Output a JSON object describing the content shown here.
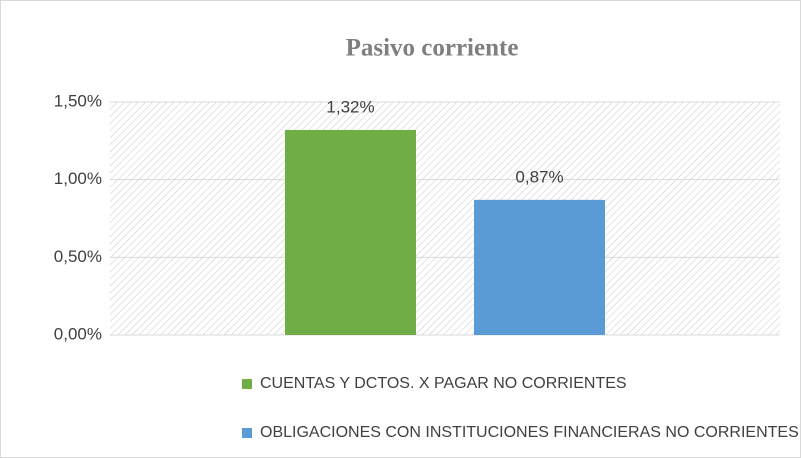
{
  "chart_data": {
    "type": "bar",
    "title": "Pasivo corriente",
    "categories": [
      null
    ],
    "series": [
      {
        "name": "CUENTAS Y DCTOS. X PAGAR NO CORRIENTES",
        "color": "#70ad47",
        "values": [
          1.32
        ],
        "value_labels": [
          "1,32%"
        ]
      },
      {
        "name": "OBLIGACIONES CON INSTITUCIONES FINANCIERAS NO CORRIENTES",
        "color": "#5b9bd5",
        "values": [
          0.87
        ],
        "value_labels": [
          "0,87%"
        ]
      }
    ],
    "ylim": [
      0,
      1.5
    ],
    "yticks": [
      {
        "value": 0,
        "label": "0,00%"
      },
      {
        "value": 0.5,
        "label": "0,50%"
      },
      {
        "value": 1.0,
        "label": "1,00%"
      },
      {
        "value": 1.5,
        "label": "1,50%"
      }
    ],
    "grid": true,
    "legend": "bottom"
  }
}
